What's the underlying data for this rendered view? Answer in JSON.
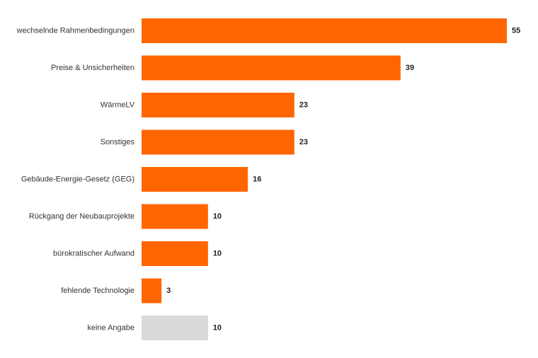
{
  "chart_data": {
    "type": "bar",
    "orientation": "horizontal",
    "title": "",
    "xlabel": "",
    "ylabel": "",
    "categories": [
      "wechselnde Rahmenbedingungen",
      "Preise & Unsicherheiten",
      "WärmeLV",
      "Sonstiges",
      "Gebäude-Energie-Gesetz (GEG)",
      "Rückgang der Neubauprojekte",
      "bürokratischer Aufwand",
      "fehlende Technologie",
      "keine Angabe"
    ],
    "values": [
      55,
      39,
      23,
      23,
      16,
      10,
      10,
      3,
      10
    ],
    "data_labels": [
      "55",
      "39",
      "23",
      "23",
      "16",
      "10",
      "10",
      "3",
      "10"
    ],
    "bar_colors": [
      "#ff6600",
      "#ff6600",
      "#ff6600",
      "#ff6600",
      "#ff6600",
      "#ff6600",
      "#ff6600",
      "#ff6600",
      "#d9d9d9"
    ],
    "xlim": [
      0,
      55
    ],
    "grid": false,
    "legend": "none"
  }
}
